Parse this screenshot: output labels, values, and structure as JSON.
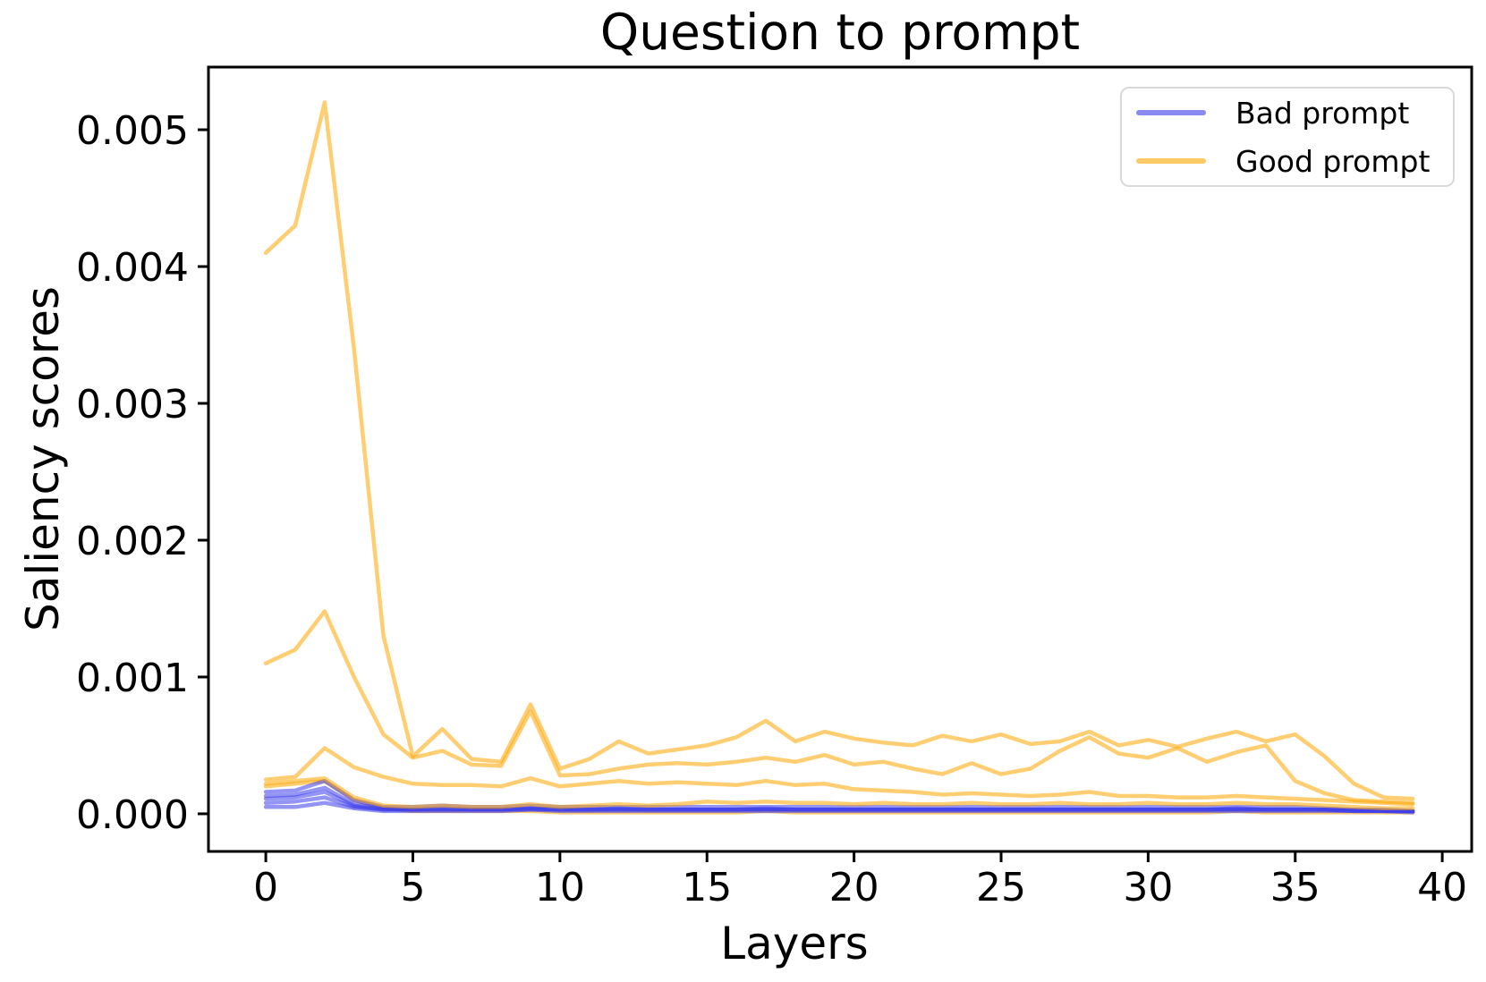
{
  "figure": {
    "title": "Question to prompt",
    "background_color": "#ffffff",
    "text_color": "#000000"
  },
  "colors": {
    "bad_prompt": "#3C3CEB",
    "good_prompt": "#FFA500",
    "line_opacity": 0.55,
    "axis_color": "#000000",
    "legend_border": "#d9d9d9"
  },
  "chart_data": {
    "type": "line",
    "title": "Question to prompt",
    "xlabel": "Layers",
    "ylabel": "Saliency scores",
    "grid": false,
    "xlim": [
      -1.95,
      41.0
    ],
    "ylim": [
      -0.000275,
      0.005458
    ],
    "x_ticks": [
      0,
      5,
      10,
      15,
      20,
      25,
      30,
      35,
      40
    ],
    "y_ticks": [
      "0.000",
      "0.001",
      "0.002",
      "0.003",
      "0.004",
      "0.005"
    ],
    "y_tick_values": [
      0.0,
      0.001,
      0.002,
      0.003,
      0.004,
      0.005
    ],
    "legend": {
      "position": "upper right",
      "entries": [
        {
          "label": "Bad prompt",
          "color": "#3C3CEB",
          "opacity": 0.55
        },
        {
          "label": "Good prompt",
          "color": "#FFA500",
          "opacity": 0.55
        }
      ]
    },
    "x_values": [
      0,
      1,
      2,
      3,
      4,
      5,
      6,
      7,
      8,
      9,
      10,
      11,
      12,
      13,
      14,
      15,
      16,
      17,
      18,
      19,
      20,
      21,
      22,
      23,
      24,
      25,
      26,
      27,
      28,
      29,
      30,
      31,
      32,
      33,
      34,
      35,
      36,
      37,
      38,
      39
    ],
    "series": [
      {
        "name": "good-5",
        "group": "Good prompt",
        "color": "#FFA500",
        "opacity": 0.55,
        "values": [
          0.0002,
          0.00022,
          0.00024,
          0.0001,
          4e-05,
          2e-05,
          2e-05,
          2e-05,
          2e-05,
          2e-05,
          1e-05,
          1e-05,
          1e-05,
          1e-05,
          1e-05,
          1e-05,
          1e-05,
          2e-05,
          1e-05,
          1e-05,
          1e-05,
          1e-05,
          1e-05,
          1e-05,
          1e-05,
          1e-05,
          1e-05,
          1e-05,
          1e-05,
          1e-05,
          1e-05,
          1e-05,
          1e-05,
          2e-05,
          1e-05,
          1e-05,
          1e-05,
          1e-05,
          1e-05,
          1e-05
        ]
      },
      {
        "name": "bad-4",
        "group": "Bad prompt",
        "color": "#3C3CEB",
        "opacity": 0.55,
        "values": [
          5e-05,
          5e-05,
          8e-05,
          4e-05,
          2e-05,
          2e-05,
          2e-05,
          2e-05,
          2e-05,
          3e-05,
          2e-05,
          2e-05,
          2e-05,
          2e-05,
          2e-05,
          2e-05,
          2e-05,
          2e-05,
          2e-05,
          2e-05,
          2e-05,
          2e-05,
          2e-05,
          2e-05,
          2e-05,
          2e-05,
          2e-05,
          2e-05,
          2e-05,
          2e-05,
          2e-05,
          2e-05,
          2e-05,
          2e-05,
          2e-05,
          2e-05,
          2e-05,
          2e-05,
          2e-05,
          1e-05
        ]
      },
      {
        "name": "bad-3",
        "group": "Bad prompt",
        "color": "#3C3CEB",
        "opacity": 0.55,
        "values": [
          8e-05,
          9e-05,
          0.00012,
          5e-05,
          3e-05,
          3e-05,
          3e-05,
          3e-05,
          3e-05,
          3e-05,
          3e-05,
          3e-05,
          3e-05,
          3e-05,
          3e-05,
          3e-05,
          3e-05,
          3e-05,
          3e-05,
          3e-05,
          3e-05,
          3e-05,
          3e-05,
          3e-05,
          3e-05,
          3e-05,
          3e-05,
          3e-05,
          3e-05,
          3e-05,
          3e-05,
          3e-05,
          3e-05,
          3e-05,
          3e-05,
          3e-05,
          3e-05,
          2e-05,
          2e-05,
          2e-05
        ]
      },
      {
        "name": "bad-5",
        "group": "Bad prompt",
        "color": "#3C3CEB",
        "opacity": 0.55,
        "values": [
          0.00011,
          0.00012,
          0.00016,
          6e-05,
          3e-05,
          3e-05,
          3e-05,
          3e-05,
          3e-05,
          4e-05,
          3e-05,
          3e-05,
          3e-05,
          3e-05,
          3e-05,
          3e-05,
          3e-05,
          3e-05,
          3e-05,
          3e-05,
          3e-05,
          3e-05,
          3e-05,
          3e-05,
          3e-05,
          3e-05,
          3e-05,
          3e-05,
          3e-05,
          3e-05,
          3e-05,
          3e-05,
          3e-05,
          3e-05,
          3e-05,
          3e-05,
          3e-05,
          2e-05,
          2e-05,
          2e-05
        ]
      },
      {
        "name": "bad-2",
        "group": "Bad prompt",
        "color": "#3C3CEB",
        "opacity": 0.55,
        "values": [
          0.00013,
          0.00014,
          0.00019,
          7e-05,
          4e-05,
          3e-05,
          4e-05,
          3e-05,
          3e-05,
          4e-05,
          3e-05,
          3e-05,
          4e-05,
          3e-05,
          3e-05,
          3e-05,
          3e-05,
          4e-05,
          3e-05,
          3e-05,
          3e-05,
          3e-05,
          3e-05,
          3e-05,
          3e-05,
          3e-05,
          3e-05,
          3e-05,
          3e-05,
          3e-05,
          3e-05,
          3e-05,
          3e-05,
          4e-05,
          3e-05,
          3e-05,
          3e-05,
          3e-05,
          2e-05,
          2e-05
        ]
      },
      {
        "name": "bad-1",
        "group": "Bad prompt",
        "color": "#3C3CEB",
        "opacity": 0.55,
        "values": [
          0.00016,
          0.00017,
          0.00024,
          0.0001,
          5e-05,
          5e-05,
          6e-05,
          5e-05,
          5e-05,
          6e-05,
          5e-05,
          5e-05,
          5e-05,
          5e-05,
          5e-05,
          5e-05,
          5e-05,
          5e-05,
          5e-05,
          5e-05,
          5e-05,
          5e-05,
          5e-05,
          5e-05,
          5e-05,
          5e-05,
          5e-05,
          5e-05,
          5e-05,
          5e-05,
          5e-05,
          5e-05,
          5e-05,
          5e-05,
          5e-05,
          5e-05,
          4e-05,
          3e-05,
          3e-05,
          2e-05
        ]
      },
      {
        "name": "good-4",
        "group": "Good prompt",
        "color": "#FFA500",
        "opacity": 0.55,
        "values": [
          0.00022,
          0.00024,
          0.00026,
          0.00012,
          6e-05,
          5e-05,
          6e-05,
          5e-05,
          5e-05,
          7e-05,
          5e-05,
          6e-05,
          7e-05,
          6e-05,
          7e-05,
          9e-05,
          8e-05,
          9e-05,
          8e-05,
          8e-05,
          7e-05,
          8e-05,
          7e-05,
          7e-05,
          8e-05,
          7e-05,
          7e-05,
          8e-05,
          7e-05,
          7e-05,
          8e-05,
          7e-05,
          7e-05,
          8e-05,
          7e-05,
          7e-05,
          6e-05,
          5e-05,
          4e-05,
          4e-05
        ]
      },
      {
        "name": "good-3",
        "group": "Good prompt",
        "color": "#FFA500",
        "opacity": 0.55,
        "values": [
          0.00025,
          0.00027,
          0.00048,
          0.00034,
          0.00027,
          0.00022,
          0.00021,
          0.00021,
          0.0002,
          0.00026,
          0.0002,
          0.00022,
          0.00024,
          0.00022,
          0.00023,
          0.00022,
          0.00021,
          0.00024,
          0.00021,
          0.00022,
          0.00018,
          0.00017,
          0.00016,
          0.00014,
          0.00015,
          0.00014,
          0.00013,
          0.00014,
          0.00016,
          0.00013,
          0.00013,
          0.00012,
          0.00012,
          0.00013,
          0.00012,
          0.00011,
          0.0001,
          9e-05,
          8e-05,
          7e-05
        ]
      },
      {
        "name": "good-2",
        "group": "Good prompt",
        "color": "#FFA500",
        "opacity": 0.55,
        "values": [
          0.0011,
          0.0012,
          0.00148,
          0.001,
          0.00058,
          0.00041,
          0.00046,
          0.00036,
          0.00035,
          0.00075,
          0.00028,
          0.00029,
          0.00033,
          0.00036,
          0.00037,
          0.00036,
          0.00038,
          0.00041,
          0.00038,
          0.00043,
          0.00036,
          0.00038,
          0.00033,
          0.00029,
          0.00037,
          0.00029,
          0.00033,
          0.00046,
          0.00056,
          0.00044,
          0.00041,
          0.00048,
          0.00038,
          0.00045,
          0.0005,
          0.00024,
          0.00015,
          0.0001,
          9e-05,
          8e-05
        ]
      },
      {
        "name": "good-1",
        "group": "Good prompt",
        "color": "#FFA500",
        "opacity": 0.55,
        "values": [
          0.0041,
          0.0043,
          0.0052,
          0.0034,
          0.0013,
          0.00042,
          0.00062,
          0.0004,
          0.00038,
          0.0008,
          0.00033,
          0.0004,
          0.00053,
          0.00044,
          0.00047,
          0.0005,
          0.00056,
          0.00068,
          0.00053,
          0.0006,
          0.00055,
          0.00052,
          0.0005,
          0.00057,
          0.00053,
          0.00058,
          0.00051,
          0.00053,
          0.0006,
          0.0005,
          0.00054,
          0.00049,
          0.00055,
          0.0006,
          0.00053,
          0.00058,
          0.00042,
          0.00022,
          0.00012,
          0.00011
        ]
      }
    ]
  }
}
